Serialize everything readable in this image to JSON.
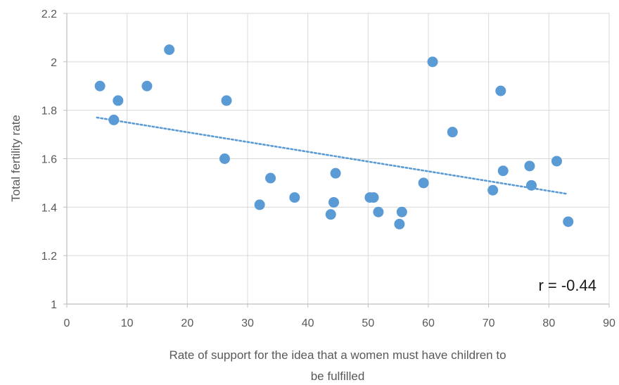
{
  "chart_data": {
    "type": "scatter",
    "title": "",
    "xlabel_lines": [
      "Rate of support for the idea that a women must have children to",
      "be fulfilled"
    ],
    "ylabel": "Total fertility rate",
    "xlim": [
      0,
      90
    ],
    "ylim": [
      1,
      2.2
    ],
    "x_ticks": [
      0,
      10,
      20,
      30,
      40,
      50,
      60,
      70,
      80,
      90
    ],
    "y_ticks": [
      1,
      1.2,
      1.4,
      1.6,
      1.8,
      2,
      2.2
    ],
    "x_tick_labels": [
      "0",
      "10",
      "20",
      "30",
      "40",
      "50",
      "60",
      "70",
      "80",
      "90"
    ],
    "y_tick_labels": [
      "1",
      "1.2",
      "1.4",
      "1.6",
      "1.8",
      "2",
      "2.2"
    ],
    "grid": "both",
    "marker_color": "#5b9bd5",
    "trendline": {
      "style": "dotted",
      "color": "#5b9bd5",
      "x_start": 5,
      "x_end": 83,
      "y_start": 1.77,
      "y_end": 1.455
    },
    "annotation": "r = -0.44",
    "points": [
      {
        "x": 5.5,
        "y": 1.9
      },
      {
        "x": 7.8,
        "y": 1.76
      },
      {
        "x": 8.5,
        "y": 1.84
      },
      {
        "x": 13.3,
        "y": 1.9
      },
      {
        "x": 17.0,
        "y": 2.05
      },
      {
        "x": 26.2,
        "y": 1.6
      },
      {
        "x": 26.5,
        "y": 1.84
      },
      {
        "x": 32.0,
        "y": 1.41
      },
      {
        "x": 33.8,
        "y": 1.52
      },
      {
        "x": 37.8,
        "y": 1.44
      },
      {
        "x": 43.8,
        "y": 1.37
      },
      {
        "x": 44.3,
        "y": 1.42
      },
      {
        "x": 44.6,
        "y": 1.54
      },
      {
        "x": 50.3,
        "y": 1.44
      },
      {
        "x": 50.9,
        "y": 1.44
      },
      {
        "x": 51.7,
        "y": 1.38
      },
      {
        "x": 55.2,
        "y": 1.33
      },
      {
        "x": 55.6,
        "y": 1.38
      },
      {
        "x": 59.2,
        "y": 1.5
      },
      {
        "x": 60.7,
        "y": 2.0
      },
      {
        "x": 64.0,
        "y": 1.71
      },
      {
        "x": 70.7,
        "y": 1.47
      },
      {
        "x": 72.0,
        "y": 1.88
      },
      {
        "x": 72.4,
        "y": 1.55
      },
      {
        "x": 76.8,
        "y": 1.57
      },
      {
        "x": 77.1,
        "y": 1.49
      },
      {
        "x": 81.3,
        "y": 1.59
      },
      {
        "x": 83.2,
        "y": 1.34
      }
    ]
  }
}
